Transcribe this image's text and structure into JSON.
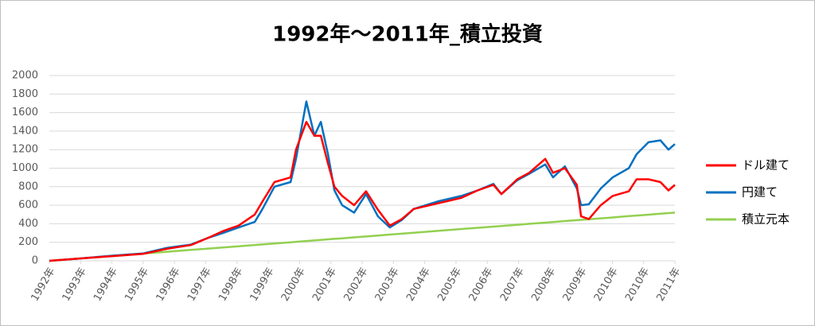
{
  "chart_data": {
    "type": "line",
    "title": "1992年～2011年_積立投資",
    "x": [
      1992.55,
      1993.49,
      1994.48,
      1995.46,
      1996.2,
      1996.94,
      1997.49,
      1997.93,
      1998.42,
      1998.92,
      1999.16,
      1999.53,
      2000.03,
      2000.2,
      2000.52,
      2000.77,
      2000.97,
      2001.19,
      2001.39,
      2001.63,
      2002.0,
      2002.37,
      2002.74,
      2003.11,
      2003.48,
      2003.85,
      2004.59,
      2005.33,
      2005.83,
      2006.32,
      2006.57,
      2007.06,
      2007.43,
      2007.93,
      2008.17,
      2008.54,
      2008.91,
      2009.04,
      2009.28,
      2009.65,
      2010.02,
      2010.52,
      2010.76,
      2011.13,
      2011.5,
      2011.75,
      2011.95
    ],
    "series": [
      {
        "name": "ドル建て",
        "color": "#ff0000",
        "values": [
          0,
          25,
          50,
          75,
          130,
          170,
          250,
          320,
          380,
          500,
          640,
          850,
          900,
          1200,
          1500,
          1350,
          1350,
          1050,
          800,
          700,
          600,
          750,
          550,
          380,
          450,
          560,
          620,
          680,
          760,
          820,
          720,
          880,
          950,
          1100,
          950,
          1000,
          820,
          480,
          450,
          600,
          700,
          750,
          880,
          880,
          850,
          760,
          820
        ]
      },
      {
        "name": "円建て",
        "color": "#0070c0",
        "values": [
          0,
          25,
          55,
          80,
          140,
          175,
          250,
          300,
          360,
          420,
          560,
          800,
          850,
          1100,
          1720,
          1350,
          1500,
          1150,
          760,
          600,
          520,
          720,
          480,
          360,
          440,
          560,
          640,
          700,
          760,
          830,
          720,
          870,
          940,
          1040,
          900,
          1020,
          780,
          600,
          610,
          780,
          900,
          1000,
          1150,
          1280,
          1300,
          1200,
          1260
        ]
      },
      {
        "name": "積立元本",
        "color": "#92d050",
        "values": [
          0,
          25,
          52,
          78,
          98,
          118,
          132,
          144,
          157,
          171,
          177,
          187,
          200,
          205,
          214,
          220,
          226,
          232,
          237,
          243,
          253,
          263,
          273,
          283,
          293,
          303,
          323,
          343,
          356,
          369,
          376,
          389,
          399,
          412,
          419,
          429,
          439,
          442,
          449,
          458,
          468,
          482,
          488,
          498,
          508,
          515,
          520
        ]
      }
    ],
    "xlim": [
      1992.55,
      2011.95
    ],
    "xticks": [
      {
        "value": 1992.55,
        "label": "1992年"
      },
      {
        "value": 1993.52,
        "label": "1993年"
      },
      {
        "value": 1994.49,
        "label": "1994年"
      },
      {
        "value": 1995.46,
        "label": "1995年"
      },
      {
        "value": 1996.43,
        "label": "1996年"
      },
      {
        "value": 1997.4,
        "label": "1997年"
      },
      {
        "value": 1998.37,
        "label": "1998年"
      },
      {
        "value": 1999.34,
        "label": "1999年"
      },
      {
        "value": 2000.31,
        "label": "2000年"
      },
      {
        "value": 2001.28,
        "label": "2001年"
      },
      {
        "value": 2002.25,
        "label": "2002年"
      },
      {
        "value": 2003.22,
        "label": "2003年"
      },
      {
        "value": 2004.19,
        "label": "2004年"
      },
      {
        "value": 2005.16,
        "label": "2005年"
      },
      {
        "value": 2006.13,
        "label": "2006年"
      },
      {
        "value": 2007.1,
        "label": "2007年"
      },
      {
        "value": 2008.07,
        "label": "2008年"
      },
      {
        "value": 2009.04,
        "label": "2009年"
      },
      {
        "value": 2010.01,
        "label": "2010年"
      },
      {
        "value": 2010.98,
        "label": "2010年"
      },
      {
        "value": 2011.95,
        "label": "2011年"
      }
    ],
    "ylim": [
      0,
      2000
    ],
    "yticks": [
      0,
      200,
      400,
      600,
      800,
      1000,
      1200,
      1400,
      1600,
      1800,
      2000
    ],
    "grid": true,
    "legend": "right"
  }
}
